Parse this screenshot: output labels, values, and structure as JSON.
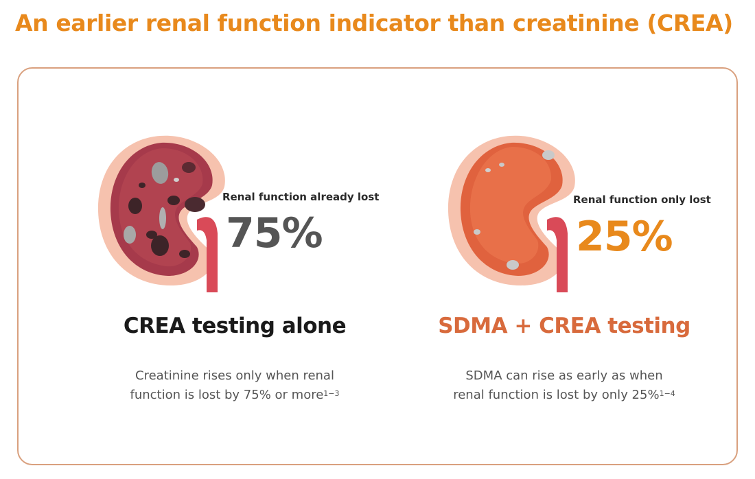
{
  "title": "An earlier renal function indicator than creatinine (CREA)",
  "left": {
    "stat_label": "Renal function already lost",
    "stat_value": "75%",
    "heading": "CREA testing alone",
    "desc_line1": "Creatinine rises only when renal",
    "desc_line2": "function is lost by 75% or more",
    "desc_ref": "1−3",
    "kidney_icon": "damaged-kidney-icon"
  },
  "right": {
    "stat_label": "Renal function only lost",
    "stat_value": "25%",
    "heading": "SDMA + CREA testing",
    "desc_line1": "SDMA can rise as early as when",
    "desc_line2": "renal function is lost by only 25%",
    "desc_ref": "1−4",
    "kidney_icon": "healthy-kidney-icon"
  },
  "colors": {
    "title_orange": "#e8891c",
    "sdma_heading": "#d86a3c",
    "card_border": "#d9a07e",
    "stat_gray": "#555555"
  }
}
